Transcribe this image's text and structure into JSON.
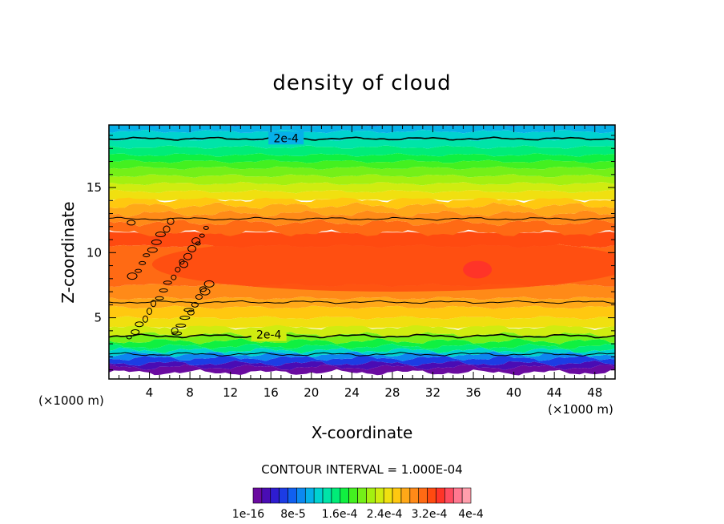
{
  "chart_data": {
    "type": "heatmap",
    "title": "density of cloud",
    "xlabel": "X-coordinate",
    "ylabel": "Z-coordinate",
    "x_unit_left": "(×1000 m)",
    "x_unit_right": "(×1000 m)",
    "xlim": [
      0,
      50
    ],
    "ylim": [
      0.3,
      19.8
    ],
    "xticks": [
      4,
      8,
      12,
      16,
      20,
      24,
      28,
      32,
      36,
      40,
      44,
      48
    ],
    "yticks": [
      5,
      10,
      15
    ],
    "contour_interval_label": "CONTOUR INTERVAL = 1.000E-04",
    "contour_labels": [
      {
        "text": "2e-4",
        "x": 17.5,
        "z": 18.8
      },
      {
        "text": "2e-4",
        "x": 15.8,
        "z": 3.7
      }
    ],
    "vertical_profile": [
      {
        "z": 0.8,
        "level": 0
      },
      {
        "z": 1.2,
        "level": 1
      },
      {
        "z": 1.5,
        "level": 3
      },
      {
        "z": 1.9,
        "level": 5
      },
      {
        "z": 2.2,
        "level": 7
      },
      {
        "z": 2.5,
        "level": 9
      },
      {
        "z": 2.8,
        "level": 10
      },
      {
        "z": 3.2,
        "level": 12
      },
      {
        "z": 3.7,
        "level": 14
      },
      {
        "z": 4.3,
        "level": 15
      },
      {
        "z": 5.0,
        "level": 16
      },
      {
        "z": 5.8,
        "level": 17
      },
      {
        "z": 6.5,
        "level": 18
      },
      {
        "z": 7.5,
        "level": 19
      },
      {
        "z": 10.5,
        "level": 20
      },
      {
        "z": 11.5,
        "level": 19
      },
      {
        "z": 12.3,
        "level": 18
      },
      {
        "z": 13.0,
        "level": 17
      },
      {
        "z": 13.6,
        "level": 16
      },
      {
        "z": 14.1,
        "level": 15
      },
      {
        "z": 14.7,
        "level": 14
      },
      {
        "z": 15.3,
        "level": 13
      },
      {
        "z": 15.9,
        "level": 12
      },
      {
        "z": 16.5,
        "level": 11
      },
      {
        "z": 17.0,
        "level": 10
      },
      {
        "z": 17.5,
        "level": 9
      },
      {
        "z": 18.1,
        "level": 8
      },
      {
        "z": 18.7,
        "level": 7
      },
      {
        "z": 19.3,
        "level": 6
      },
      {
        "z": 19.8,
        "level": 5
      }
    ],
    "contour_lines_z": [
      18.75,
      12.6,
      6.2,
      3.6,
      2.2
    ],
    "colorbar": {
      "colors": [
        "#6a0aa0",
        "#4a0cb4",
        "#2e1cd0",
        "#1c3ce4",
        "#1060f0",
        "#0c88f0",
        "#06b0e8",
        "#00d2d0",
        "#00e4a8",
        "#00ec78",
        "#10f040",
        "#44f020",
        "#74f018",
        "#a4f010",
        "#d0ec10",
        "#f0e010",
        "#ffc810",
        "#ffa818",
        "#ff8a18",
        "#ff6a14",
        "#ff4a10",
        "#ff3428",
        "#ff4c60",
        "#ff7890",
        "#ff9eac"
      ],
      "tick_labels": [
        "1e-16",
        "8e-5",
        "1.6e-4",
        "2.4e-4",
        "3.2e-4",
        "4e-4"
      ]
    }
  }
}
